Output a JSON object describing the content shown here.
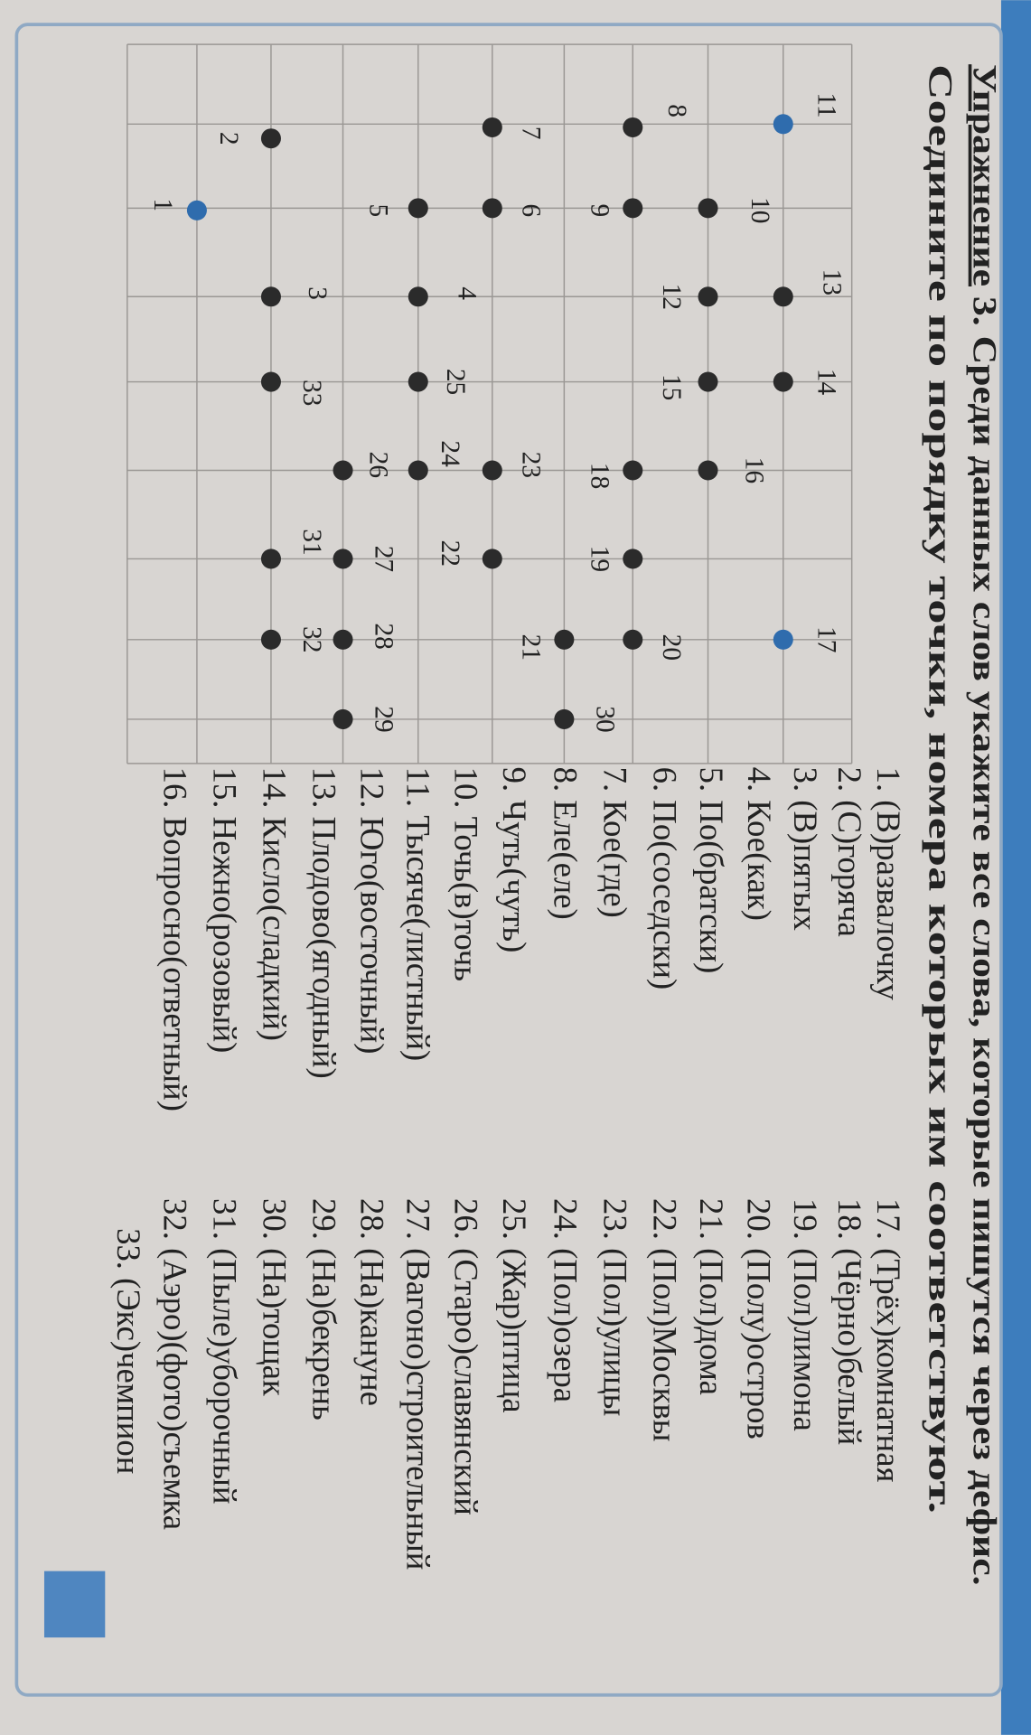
{
  "header": {
    "exercise": "Упражнение",
    "number": "3.",
    "task": "Среди данных слов укажите все слова, которые пишутся через дефис.",
    "instruction": "Соедините по порядку точки, номера которых им соответствуют."
  },
  "points": [
    "1",
    "2",
    "3",
    "4",
    "5",
    "6",
    "7",
    "8",
    "9",
    "10",
    "11",
    "12",
    "13",
    "14",
    "15",
    "16",
    "17",
    "18",
    "19",
    "20",
    "21",
    "22",
    "23",
    "24",
    "25",
    "26",
    "27",
    "28",
    "29",
    "30",
    "31",
    "32",
    "33"
  ],
  "words": [
    "1. (В)развалочку",
    "2. (С)горяча",
    "3. (В)пятых",
    "4. Кое(как)",
    "5. По(братски)",
    "6. По(соседски)",
    "7. Кое(где)",
    "8. Еле(еле)",
    "9. Чуть(чуть)",
    "10. Точь(в)точь",
    "11. Тысяче(листный)",
    "12. Юго(восточный)",
    "13. Плодово(ягодный)",
    "14. Кисло(сладкий)",
    "15. Нежно(розовый)",
    "16. Вопросно(ответный)",
    "17. (Трёх)комнатная",
    "18. (Чёрно)белый",
    "19. (Пол)лимона",
    "20. (Полу)остров",
    "21. (Пол)дома",
    "22. (Пол)Москвы",
    "23. (Пол)улицы",
    "24. (Пол)озера",
    "25. (Жар)птица",
    "26. (Старо)славянский",
    "27. (Вагоно)строительный",
    "28. (На)кануне",
    "29. (На)бекрень",
    "30. (На)тощак",
    "31. (Пыле)уборочный",
    "32. (Аэро)(фото)съемка",
    "33. (Экс)чемпион"
  ]
}
